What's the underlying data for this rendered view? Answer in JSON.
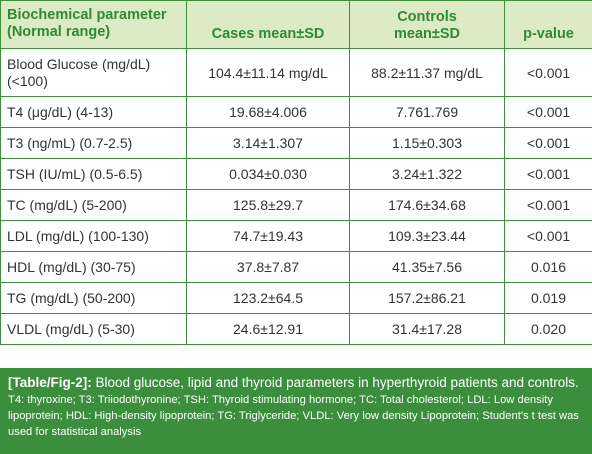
{
  "table": {
    "headers": {
      "param_line1": "Biochemical parameter",
      "param_line2": "(Normal range)",
      "cases": "Cases mean±SD",
      "controls_line1": "Controls",
      "controls_line2": "mean±SD",
      "pvalue": "p-value"
    },
    "rows": [
      {
        "param": "Blood Glucose (mg/dL) (<100)",
        "cases": "104.4±11.14 mg/dL",
        "controls": "88.2±11.37 mg/dL",
        "p": "<0.001"
      },
      {
        "param": "T4 (μg/dL) (4-13)",
        "cases": "19.68±4.006",
        "controls": "7.761.769",
        "p": "<0.001"
      },
      {
        "param": "T3 (ng/mL) (0.7-2.5)",
        "cases": "3.14±1.307",
        "controls": "1.15±0.303",
        "p": "<0.001"
      },
      {
        "param": "TSH (IU/mL) (0.5-6.5)",
        "cases": "0.034±0.030",
        "controls": "3.24±1.322",
        "p": "<0.001"
      },
      {
        "param": "TC (mg/dL) (5-200)",
        "cases": "125.8±29.7",
        "controls": "174.6±34.68",
        "p": "<0.001"
      },
      {
        "param": "LDL (mg/dL) (100-130)",
        "cases": "74.7±19.43",
        "controls": "109.3±23.44",
        "p": "<0.001"
      },
      {
        "param": "HDL (mg/dL) (30-75)",
        "cases": "37.8±7.87",
        "controls": "41.35±7.56",
        "p": "0.016"
      },
      {
        "param": "TG (mg/dL) (50-200)",
        "cases": "123.2±64.5",
        "controls": "157.2±86.21",
        "p": "0.019"
      },
      {
        "param": "VLDL (mg/dL) (5-30)",
        "cases": "24.6±12.91",
        "controls": "31.4±17.28",
        "p": "0.020"
      }
    ]
  },
  "caption": {
    "label": "[Table/Fig-2]:",
    "text": " Blood glucose, lipid and thyroid parameters in hyperthyroid patients and controls.",
    "notes": "T4: thyroxine; T3: Triiodothyronine; TSH: Thyroid stimulating hormone; TC: Total cholesterol; LDL: Low density lipoprotein; HDL: High-density lipoprotein; TG: Triglyceride; VLDL: Very low density Lipoprotein; Student's t test was used for statistical analysis"
  },
  "colors": {
    "header_bg": "#ddebc4",
    "header_text": "#2f8a35",
    "border": "#3f8f3a",
    "caption_bg": "#3b8f3c",
    "caption_text": "#ffffff"
  }
}
